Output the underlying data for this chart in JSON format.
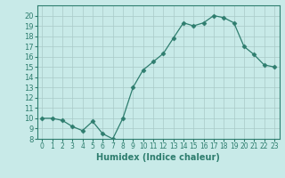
{
  "x": [
    0,
    1,
    2,
    3,
    4,
    5,
    6,
    7,
    8,
    9,
    10,
    11,
    12,
    13,
    14,
    15,
    16,
    17,
    18,
    19,
    20,
    21,
    22,
    23
  ],
  "y": [
    10,
    10,
    9.8,
    9.2,
    8.8,
    9.7,
    8.5,
    8.0,
    10.0,
    13.0,
    14.7,
    15.5,
    16.3,
    17.8,
    19.3,
    19.0,
    19.3,
    20.0,
    19.8,
    19.3,
    17.0,
    16.2,
    15.2,
    15.0
  ],
  "xlabel": "Humidex (Indice chaleur)",
  "ylabel": "",
  "line_color": "#2e7d6e",
  "marker": "D",
  "marker_size": 2.5,
  "bg_color": "#c8eae8",
  "grid_color": "#a9c9c7",
  "xlim": [
    -0.5,
    23.5
  ],
  "ylim": [
    8,
    21
  ],
  "yticks": [
    8,
    9,
    10,
    11,
    12,
    13,
    14,
    15,
    16,
    17,
    18,
    19,
    20
  ],
  "xticks": [
    0,
    1,
    2,
    3,
    4,
    5,
    6,
    7,
    8,
    9,
    10,
    11,
    12,
    13,
    14,
    15,
    16,
    17,
    18,
    19,
    20,
    21,
    22,
    23
  ]
}
